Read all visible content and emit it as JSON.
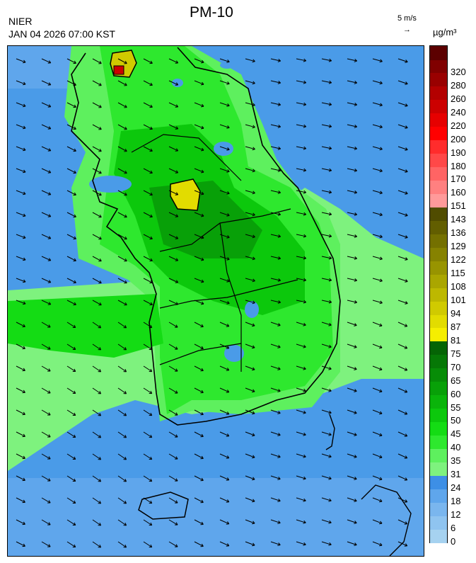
{
  "header": {
    "title": "PM-10",
    "org": "NIER",
    "datetime": "JAN 04 2026 07:00 KST",
    "wind_ref_label": "5 m/s",
    "wind_ref_arrow": "→",
    "unit": "µg/m³"
  },
  "colorbar": {
    "levels": [
      {
        "label": "0",
        "color": "#a6d2f0"
      },
      {
        "label": "6",
        "color": "#8fc4f0"
      },
      {
        "label": "12",
        "color": "#7ab6ee"
      },
      {
        "label": "18",
        "color": "#5fa6ec"
      },
      {
        "label": "24",
        "color": "#3d8fe6"
      },
      {
        "label": "31",
        "color": "#7ef27e"
      },
      {
        "label": "35",
        "color": "#5ef05e"
      },
      {
        "label": "40",
        "color": "#2ee82e"
      },
      {
        "label": "45",
        "color": "#14dc14"
      },
      {
        "label": "50",
        "color": "#0cc80c"
      },
      {
        "label": "55",
        "color": "#0ab40a"
      },
      {
        "label": "60",
        "color": "#08a008"
      },
      {
        "label": "65",
        "color": "#078c07"
      },
      {
        "label": "70",
        "color": "#067806"
      },
      {
        "label": "75",
        "color": "#056405"
      },
      {
        "label": "81",
        "color": "#f5ee00"
      },
      {
        "label": "87",
        "color": "#e2dc00"
      },
      {
        "label": "94",
        "color": "#d0ca00"
      },
      {
        "label": "101",
        "color": "#bdb800"
      },
      {
        "label": "108",
        "color": "#aaa600"
      },
      {
        "label": "115",
        "color": "#989400"
      },
      {
        "label": "122",
        "color": "#868200"
      },
      {
        "label": "129",
        "color": "#747000"
      },
      {
        "label": "136",
        "color": "#625e00"
      },
      {
        "label": "143",
        "color": "#504c00"
      },
      {
        "label": "151",
        "color": "#ff9a9a"
      },
      {
        "label": "160",
        "color": "#ff8080"
      },
      {
        "label": "170",
        "color": "#ff6464"
      },
      {
        "label": "180",
        "color": "#ff4848"
      },
      {
        "label": "190",
        "color": "#ff2c2c"
      },
      {
        "label": "200",
        "color": "#ff0000"
      },
      {
        "label": "220",
        "color": "#e60000"
      },
      {
        "label": "240",
        "color": "#cc0000"
      },
      {
        "label": "260",
        "color": "#b30000"
      },
      {
        "label": "280",
        "color": "#990000"
      },
      {
        "label": "320",
        "color": "#800000"
      },
      {
        "label": "",
        "color": "#5c0000"
      }
    ]
  }
}
